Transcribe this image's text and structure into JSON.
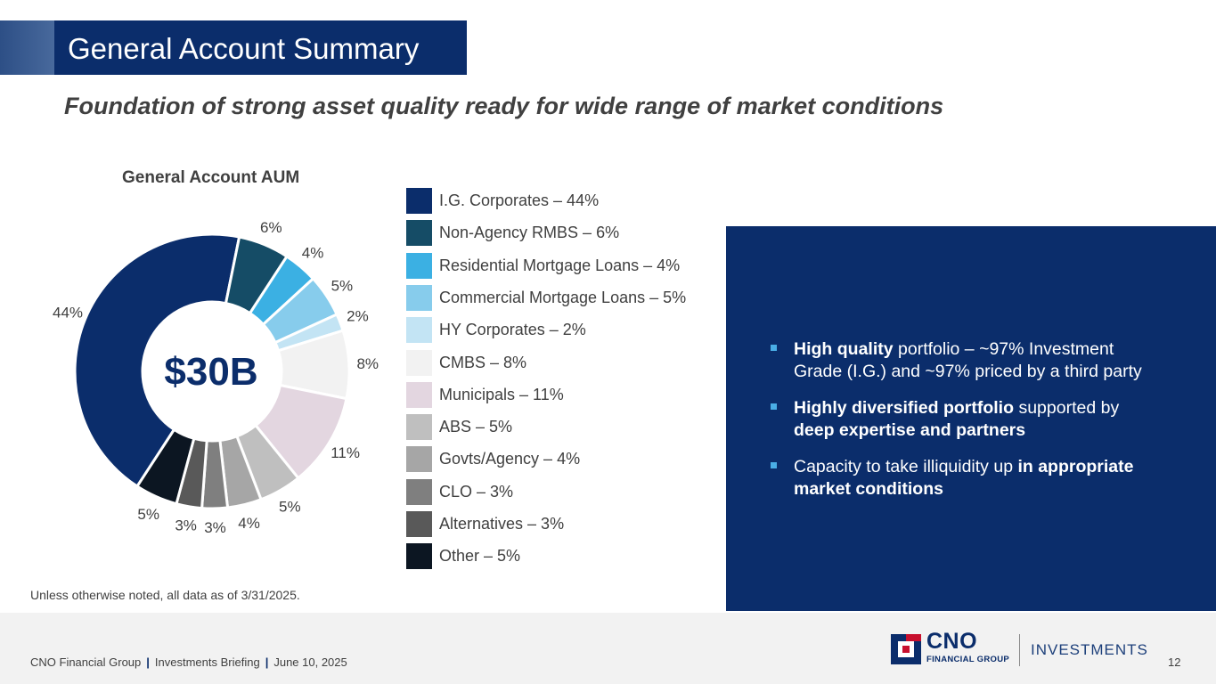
{
  "title": "General Account Summary",
  "subtitle": "Foundation of strong asset quality ready for wide range of market conditions",
  "chart_data": {
    "type": "pie",
    "variant": "donut",
    "title": "General Account AUM",
    "center_label": "$30B",
    "categories": [
      "I.G. Corporates",
      "Non-Agency RMBS",
      "Residential Mortgage Loans",
      "Commercial Mortgage Loans",
      "HY Corporates",
      "CMBS",
      "Municipals",
      "ABS",
      "Govts/Agency",
      "CLO",
      "Alternatives",
      "Other"
    ],
    "values": [
      44,
      6,
      4,
      5,
      2,
      8,
      11,
      5,
      4,
      3,
      3,
      5
    ],
    "data_labels": [
      "44%",
      "6%",
      "4%",
      "5%",
      "2%",
      "8%",
      "11%",
      "5%",
      "4%",
      "3%",
      "3%",
      "5%"
    ],
    "legend_labels": [
      "I.G. Corporates – 44%",
      "Non-Agency RMBS – 6%",
      "Residential Mortgage Loans – 4%",
      "Commercial Mortgage Loans – 5%",
      "HY Corporates – 2%",
      "CMBS – 8%",
      "Municipals – 11%",
      "ABS – 5%",
      "Govts/Agency – 4%",
      "CLO – 3%",
      "Alternatives – 3%",
      "Other – 5%"
    ],
    "colors": [
      "#0b2d6b",
      "#154c66",
      "#3bb0e3",
      "#87ccec",
      "#c3e4f4",
      "#f2f2f2",
      "#e3d6e0",
      "#bfbfbf",
      "#a6a6a6",
      "#7f7f7f",
      "#595959",
      "#0c1622"
    ],
    "legend_position": "right"
  },
  "panel": {
    "bullets": [
      {
        "bold": "High quality",
        "rest": " portfolio – ~97% Investment Grade (I.G.) and ~97% priced by a third party"
      },
      {
        "bold": "Highly diversified portfolio",
        "rest": " supported by ",
        "bold2": "deep expertise and partners"
      },
      {
        "pre": "Capacity to take illiquidity up ",
        "bold": "in appropriate market conditions"
      }
    ]
  },
  "footnote": "Unless otherwise noted, all data as of 3/31/2025.",
  "footer": {
    "company": "CNO Financial Group",
    "separator": "|",
    "event": "Investments Briefing",
    "date": "June 10, 2025",
    "page": "12"
  },
  "logo": {
    "name": "CNO",
    "sub": "FINANCIAL GROUP",
    "division": "INVESTMENTS"
  },
  "colors": {
    "navy": "#0b2d6b",
    "bullet_accent": "#4aaee6"
  }
}
